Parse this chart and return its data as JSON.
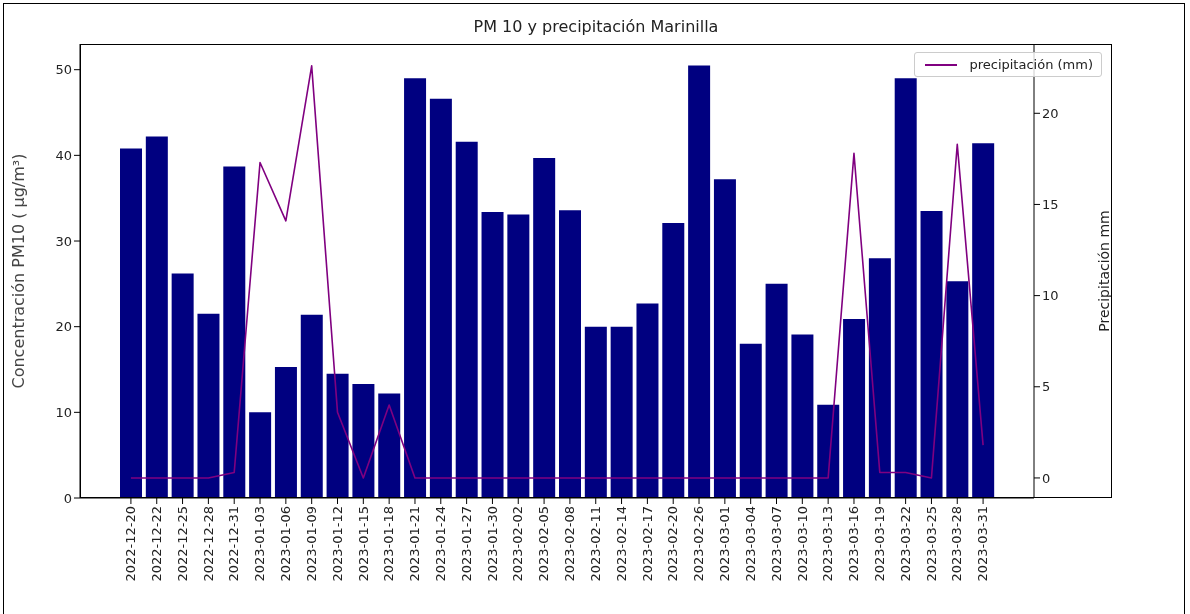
{
  "chart_data": {
    "type": "bar",
    "title": "PM 10 y precipitación Marinilla",
    "ylabel": "Concentración PM10 ( μg/m³)",
    "y2label": "Precipitación mm",
    "categories": [
      "2022-12-20",
      "2022-12-22",
      "2022-12-25",
      "2022-12-28",
      "2022-12-31",
      "2023-01-03",
      "2023-01-06",
      "2023-01-09",
      "2023-01-12",
      "2023-01-15",
      "2023-01-18",
      "2023-01-21",
      "2023-01-24",
      "2023-01-27",
      "2023-01-30",
      "2023-02-02",
      "2023-02-05",
      "2023-02-08",
      "2023-02-11",
      "2023-02-14",
      "2023-02-17",
      "2023-02-20",
      "2023-02-26",
      "2023-03-01",
      "2023-03-04",
      "2023-03-07",
      "2023-03-10",
      "2023-03-13",
      "2023-03-16",
      "2023-03-19",
      "2023-03-22",
      "2023-03-25",
      "2023-03-28",
      "2023-03-31"
    ],
    "series": [
      {
        "color": "#000080",
        "values": [
          40.8,
          42.2,
          26.2,
          21.5,
          38.7,
          10.0,
          15.3,
          21.4,
          14.5,
          13.3,
          12.2,
          49.0,
          46.6,
          41.6,
          33.4,
          33.1,
          39.7,
          33.6,
          20.0,
          20.0,
          22.7,
          32.1,
          50.5,
          37.2,
          18.0,
          25.0,
          19.1,
          10.9,
          20.9,
          28.0,
          49.0,
          33.5,
          25.3,
          41.4
        ]
      },
      {
        "type": "line",
        "name": "precipitación (mm)",
        "color": "#800080",
        "axis": "y2",
        "values": [
          0,
          0,
          0,
          0,
          0.3,
          17.3,
          14.1,
          22.6,
          3.6,
          0,
          4.0,
          0,
          0,
          0,
          0,
          0,
          0,
          0,
          0,
          0,
          0,
          0,
          0,
          0,
          0,
          0,
          0,
          0,
          17.8,
          0.3,
          0.3,
          0,
          18.3,
          1.8
        ]
      }
    ],
    "ylim": [
      0,
      53
    ],
    "yticks": [
      0,
      10,
      20,
      30,
      40,
      50
    ],
    "y2lim": [
      -1.1,
      23.8
    ],
    "y2ticks": [
      0,
      5,
      10,
      15,
      20
    ],
    "grid": false,
    "legend": "top right",
    "line_style": "solid"
  }
}
